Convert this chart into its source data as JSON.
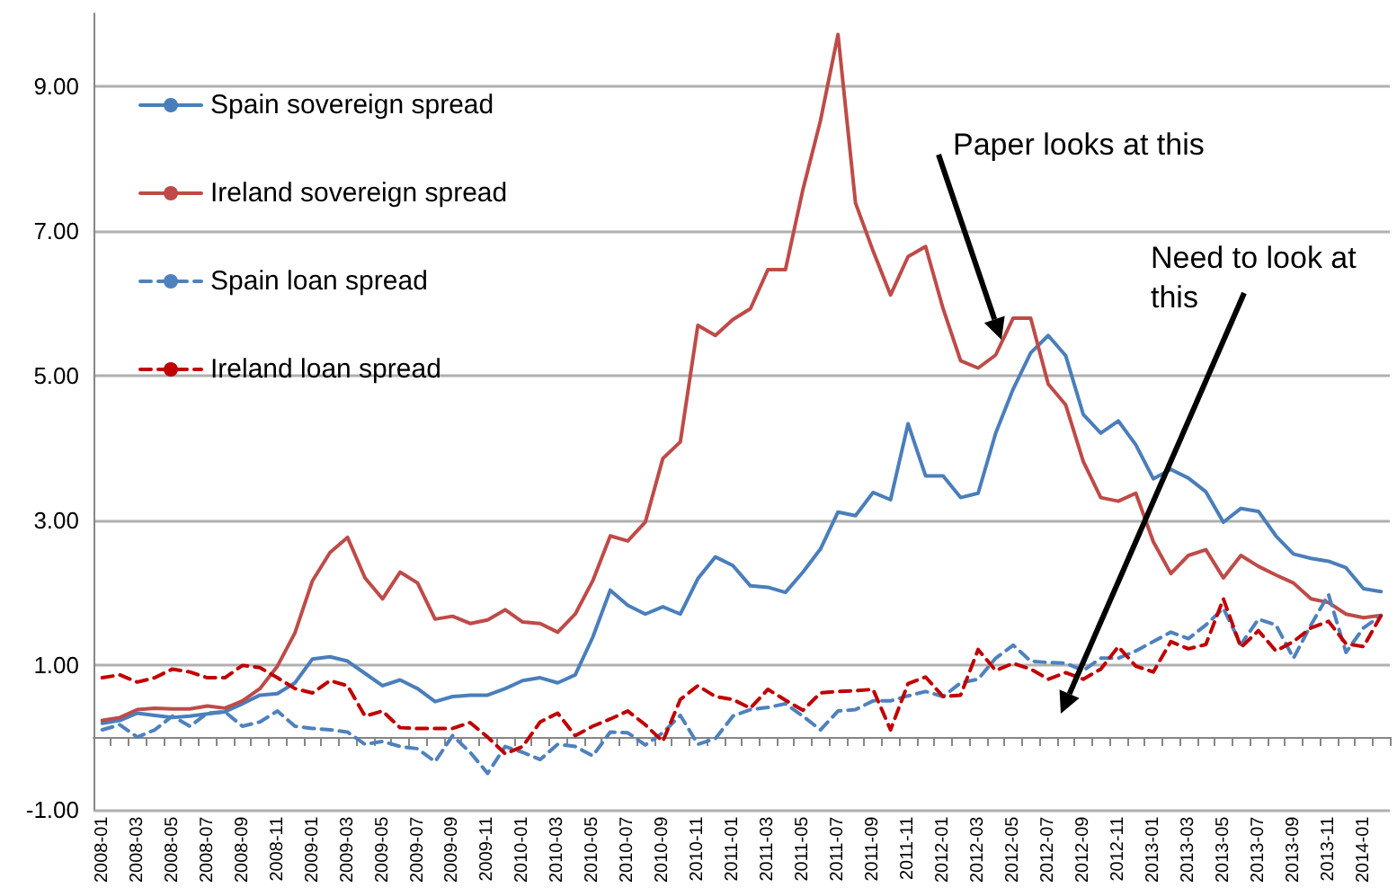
{
  "chart_data": {
    "type": "line",
    "categories": [
      "2008-01",
      null,
      "2008-03",
      null,
      "2008-05",
      null,
      "2008-07",
      null,
      "2008-09",
      null,
      "2008-11",
      null,
      "2009-01",
      null,
      "2009-03",
      null,
      "2009-05",
      null,
      "2009-07",
      null,
      "2009-09",
      null,
      "2009-11",
      null,
      "2010-01",
      null,
      "2010-03",
      null,
      "2010-05",
      null,
      "2010-07",
      null,
      "2010-09",
      null,
      "2010-11",
      null,
      "2011-01",
      null,
      "2011-03",
      null,
      "2011-05",
      null,
      "2011-07",
      null,
      "2011-09",
      null,
      "2011-11",
      null,
      "2012-01",
      null,
      "2012-03",
      null,
      "2012-05",
      null,
      "2012-07",
      null,
      "2012-09",
      null,
      "2012-11",
      null,
      "2013-01",
      null,
      "2013-03",
      null,
      "2013-05",
      null,
      "2013-07",
      null,
      "2013-09",
      null,
      "2013-11",
      null,
      "2014-01",
      null
    ],
    "series": [
      {
        "name": "Spain sovereign spread",
        "color": "#4a7ebb",
        "line_style": "solid",
        "values": [
          0.19,
          0.23,
          0.33,
          0.3,
          0.27,
          0.29,
          0.32,
          0.35,
          0.46,
          0.58,
          0.6,
          0.75,
          1.08,
          1.11,
          1.05,
          0.88,
          0.71,
          0.79,
          0.67,
          0.49,
          0.56,
          0.58,
          0.58,
          0.67,
          0.78,
          0.82,
          0.75,
          0.86,
          1.38,
          2.03,
          1.82,
          1.7,
          1.8,
          1.7,
          2.19,
          2.49,
          2.37,
          2.09,
          2.07,
          2.0,
          2.28,
          2.6,
          3.11,
          3.06,
          3.38,
          3.28,
          4.33,
          3.61,
          3.61,
          3.31,
          3.37,
          4.2,
          4.81,
          5.31,
          5.55,
          5.27,
          4.46,
          4.2,
          4.37,
          4.04,
          3.57,
          3.7,
          3.58,
          3.39,
          2.97,
          3.16,
          3.12,
          2.78,
          2.53,
          2.47,
          2.43,
          2.34,
          2.05,
          2.01
        ]
      },
      {
        "name": "Ireland sovereign spread",
        "color": "#be4b48",
        "line_style": "solid",
        "values": [
          0.23,
          0.27,
          0.38,
          0.4,
          0.39,
          0.39,
          0.43,
          0.4,
          0.5,
          0.67,
          0.98,
          1.44,
          2.16,
          2.55,
          2.76,
          2.2,
          1.91,
          2.28,
          2.13,
          1.63,
          1.67,
          1.57,
          1.62,
          1.76,
          1.59,
          1.57,
          1.45,
          1.7,
          2.16,
          2.78,
          2.71,
          2.97,
          3.85,
          4.08,
          5.69,
          5.55,
          5.77,
          5.92,
          6.46,
          6.46,
          7.57,
          8.52,
          9.71,
          7.38,
          6.72,
          6.11,
          6.64,
          6.78,
          5.92,
          5.2,
          5.1,
          5.28,
          5.79,
          5.79,
          4.88,
          4.59,
          3.81,
          3.31,
          3.26,
          3.37,
          2.7,
          2.26,
          2.51,
          2.59,
          2.2,
          2.51,
          2.36,
          2.24,
          2.13,
          1.91,
          1.86,
          1.7,
          1.65,
          1.68
        ]
      },
      {
        "name": "Spain loan spread",
        "color": "#4f81bd",
        "line_style": "dashed",
        "values": [
          0.1,
          0.17,
          0.0,
          0.1,
          0.29,
          0.15,
          0.33,
          0.35,
          0.15,
          0.21,
          0.36,
          0.15,
          0.12,
          0.1,
          0.07,
          -0.1,
          -0.06,
          -0.13,
          -0.16,
          -0.34,
          0.02,
          -0.21,
          -0.5,
          -0.13,
          -0.21,
          -0.31,
          -0.1,
          -0.13,
          -0.26,
          0.07,
          0.06,
          -0.11,
          0.06,
          0.3,
          -0.1,
          -0.02,
          0.29,
          0.38,
          0.41,
          0.46,
          0.29,
          0.1,
          0.36,
          0.38,
          0.5,
          0.5,
          0.57,
          0.63,
          0.56,
          0.75,
          0.8,
          1.09,
          1.27,
          1.05,
          1.03,
          1.02,
          0.92,
          1.09,
          1.09,
          1.19,
          1.32,
          1.45,
          1.36,
          1.55,
          1.78,
          1.28,
          1.63,
          1.55,
          1.09,
          1.55,
          1.97,
          1.17,
          1.51,
          1.68
        ]
      },
      {
        "name": "Ireland loan spread",
        "color": "#c00000",
        "line_style": "dashed",
        "values": [
          0.82,
          0.86,
          0.76,
          0.82,
          0.94,
          0.9,
          0.82,
          0.82,
          0.99,
          0.96,
          0.82,
          0.67,
          0.61,
          0.78,
          0.71,
          0.29,
          0.36,
          0.13,
          0.12,
          0.12,
          0.12,
          0.2,
          0.0,
          -0.23,
          -0.13,
          0.21,
          0.33,
          0.02,
          0.15,
          0.25,
          0.36,
          0.17,
          -0.06,
          0.52,
          0.71,
          0.56,
          0.52,
          0.4,
          0.66,
          0.51,
          0.37,
          0.61,
          0.63,
          0.64,
          0.66,
          0.1,
          0.74,
          0.83,
          0.56,
          0.58,
          1.21,
          0.92,
          1.02,
          0.94,
          0.8,
          0.89,
          0.8,
          0.94,
          1.25,
          0.98,
          0.9,
          1.32,
          1.22,
          1.28,
          1.91,
          1.24,
          1.47,
          1.19,
          1.32,
          1.51,
          1.6,
          1.29,
          1.25,
          1.68
        ]
      }
    ],
    "ylim": [
      -1,
      10
    ],
    "yticks": [
      {
        "value": -1,
        "label": "-1.00"
      },
      {
        "value": 1,
        "label": "1.00"
      },
      {
        "value": 3,
        "label": "3.00"
      },
      {
        "value": 5,
        "label": "5.00"
      },
      {
        "value": 7,
        "label": "7.00"
      },
      {
        "value": 9,
        "label": "9.00"
      }
    ],
    "grid": "y",
    "legend": "top left",
    "marker": "none",
    "annotations": [
      "Paper looks at this",
      "Need to look at this"
    ]
  }
}
